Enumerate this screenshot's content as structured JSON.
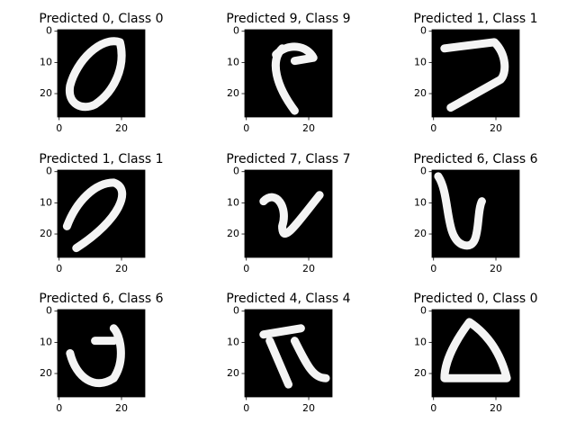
{
  "chart_data": [
    {
      "type": "image",
      "title": "Predicted 0, Class 0",
      "xlim": [
        -0.5,
        27.5
      ],
      "ylim": [
        27.5,
        -0.5
      ],
      "xticks": [
        0,
        20
      ],
      "yticks": [
        0,
        10,
        20
      ]
    },
    {
      "type": "image",
      "title": "Predicted 9, Class 9",
      "xlim": [
        -0.5,
        27.5
      ],
      "ylim": [
        27.5,
        -0.5
      ],
      "xticks": [
        0,
        20
      ],
      "yticks": [
        0,
        10,
        20
      ]
    },
    {
      "type": "image",
      "title": "Predicted 1, Class 1",
      "xlim": [
        -0.5,
        27.5
      ],
      "ylim": [
        27.5,
        -0.5
      ],
      "xticks": [
        0,
        20
      ],
      "yticks": [
        0,
        10,
        20
      ]
    },
    {
      "type": "image",
      "title": "Predicted 1, Class 1",
      "xlim": [
        -0.5,
        27.5
      ],
      "ylim": [
        27.5,
        -0.5
      ],
      "xticks": [
        0,
        20
      ],
      "yticks": [
        0,
        10,
        20
      ]
    },
    {
      "type": "image",
      "title": "Predicted 7, Class 7",
      "xlim": [
        -0.5,
        27.5
      ],
      "ylim": [
        27.5,
        -0.5
      ],
      "xticks": [
        0,
        20
      ],
      "yticks": [
        0,
        10,
        20
      ]
    },
    {
      "type": "image",
      "title": "Predicted 6, Class 6",
      "xlim": [
        -0.5,
        27.5
      ],
      "ylim": [
        27.5,
        -0.5
      ],
      "xticks": [
        0,
        20
      ],
      "yticks": [
        0,
        10,
        20
      ]
    },
    {
      "type": "image",
      "title": "Predicted 6, Class 6",
      "xlim": [
        -0.5,
        27.5
      ],
      "ylim": [
        27.5,
        -0.5
      ],
      "xticks": [
        0,
        20
      ],
      "yticks": [
        0,
        10,
        20
      ]
    },
    {
      "type": "image",
      "title": "Predicted 4, Class 4",
      "xlim": [
        -0.5,
        27.5
      ],
      "ylim": [
        27.5,
        -0.5
      ],
      "xticks": [
        0,
        20
      ],
      "yticks": [
        0,
        10,
        20
      ]
    },
    {
      "type": "image",
      "title": "Predicted 0, Class 0",
      "xlim": [
        -0.5,
        27.5
      ],
      "ylim": [
        27.5,
        -0.5
      ],
      "xticks": [
        0,
        20
      ],
      "yticks": [
        0,
        10,
        20
      ]
    }
  ]
}
